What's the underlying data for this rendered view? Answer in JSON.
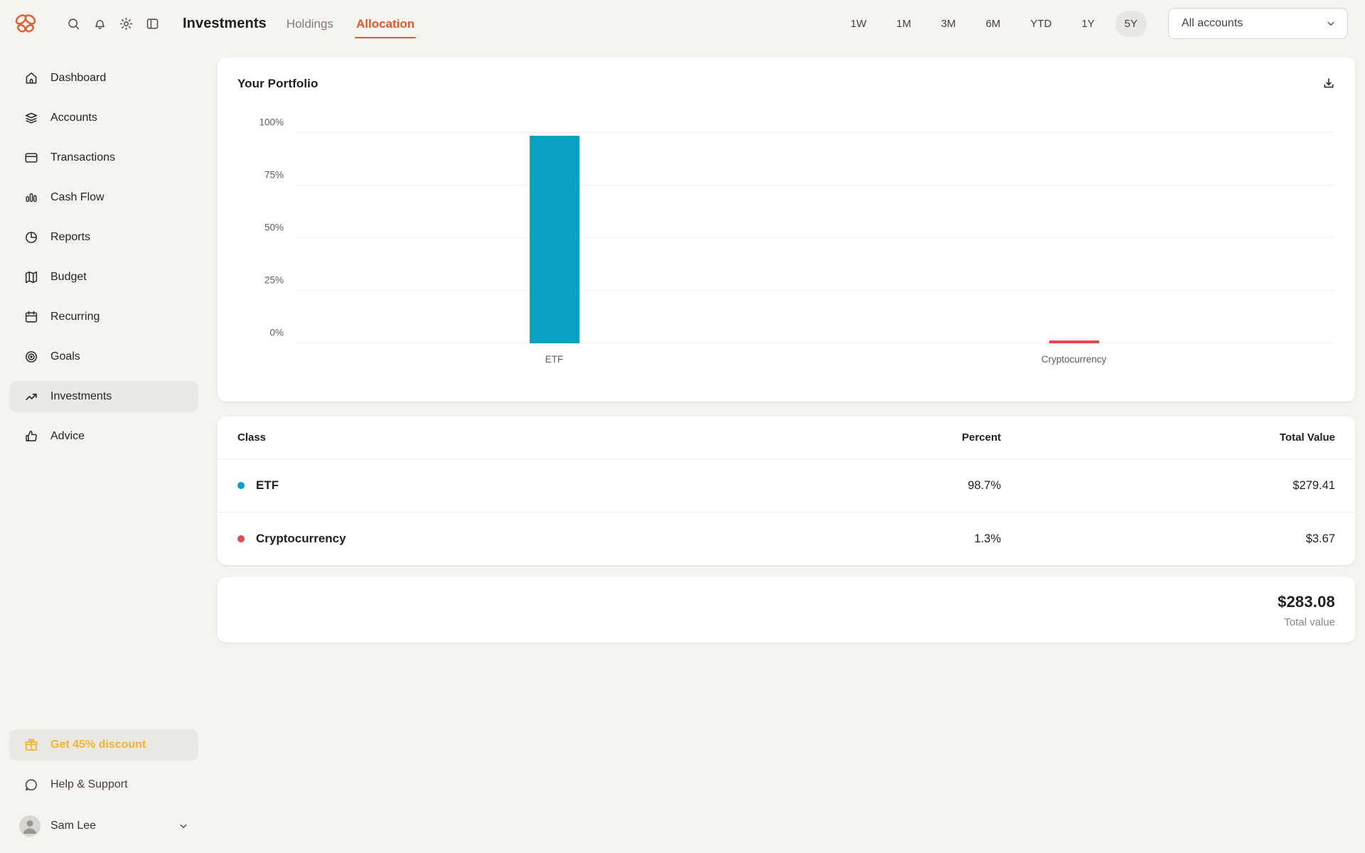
{
  "header": {
    "logo": "monarch-butterfly-logo",
    "title": "Investments",
    "tabs": [
      {
        "label": "Holdings",
        "active": false
      },
      {
        "label": "Allocation",
        "active": true
      }
    ],
    "time_ranges": [
      {
        "label": "1W",
        "active": false
      },
      {
        "label": "1M",
        "active": false
      },
      {
        "label": "3M",
        "active": false
      },
      {
        "label": "6M",
        "active": false
      },
      {
        "label": "YTD",
        "active": false
      },
      {
        "label": "1Y",
        "active": false
      },
      {
        "label": "5Y",
        "active": true
      }
    ],
    "account_filter_value": "All accounts"
  },
  "sidebar": {
    "items": [
      {
        "label": "Dashboard",
        "icon": "home-icon",
        "active": false
      },
      {
        "label": "Accounts",
        "icon": "layers-icon",
        "active": false
      },
      {
        "label": "Transactions",
        "icon": "credit-card-icon",
        "active": false
      },
      {
        "label": "Cash Flow",
        "icon": "bar-chart-icon",
        "active": false
      },
      {
        "label": "Reports",
        "icon": "pie-chart-icon",
        "active": false
      },
      {
        "label": "Budget",
        "icon": "map-icon",
        "active": false
      },
      {
        "label": "Recurring",
        "icon": "calendar-icon",
        "active": false
      },
      {
        "label": "Goals",
        "icon": "target-icon",
        "active": false
      },
      {
        "label": "Investments",
        "icon": "trending-up-icon",
        "active": true
      },
      {
        "label": "Advice",
        "icon": "thumbs-up-icon",
        "active": false
      }
    ],
    "footer": {
      "promo_label": "Get 45% discount",
      "help_label": "Help & Support",
      "user_name": "Sam Lee"
    }
  },
  "portfolio_card": {
    "title": "Your Portfolio"
  },
  "chart_data": {
    "type": "bar",
    "title": "Your Portfolio",
    "categories": [
      "ETF",
      "Cryptocurrency"
    ],
    "values": [
      98.7,
      1.3
    ],
    "bar_colors": [
      "#09a0c2",
      "#e5484d"
    ],
    "xlabel": "",
    "ylabel": "",
    "ylim": [
      0,
      100
    ],
    "yticks": [
      0,
      25,
      50,
      75,
      100
    ],
    "ytick_labels": [
      "0%",
      "25%",
      "50%",
      "75%",
      "100%"
    ],
    "grid": true,
    "legend": "none"
  },
  "allocation_table": {
    "columns": [
      "Class",
      "Percent",
      "Total Value"
    ],
    "rows": [
      {
        "class": "ETF",
        "dot_color": "#09a0c2",
        "percent": "98.7%",
        "total_value": "$279.41"
      },
      {
        "class": "Cryptocurrency",
        "dot_color": "#e5484d",
        "percent": "1.3%",
        "total_value": "$3.67"
      }
    ]
  },
  "summary_card": {
    "value": "$283.08",
    "label": "Total value"
  },
  "colors": {
    "accent_orange": "#e4572b",
    "teal": "#09a0c2",
    "red": "#e5484d",
    "promo_amber": "#f3b42c"
  }
}
